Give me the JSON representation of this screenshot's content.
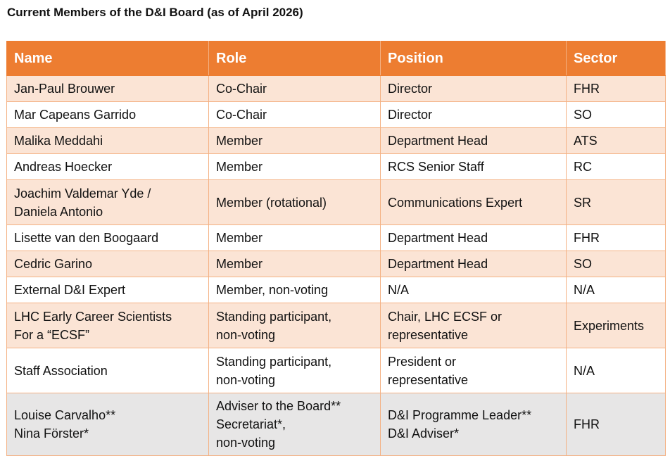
{
  "title": "Current Members of the D&I Board (as of April 2026)",
  "table": {
    "headers": [
      "Name",
      "Role",
      "Position",
      "Sector"
    ],
    "rows": [
      [
        "Jan-Paul Brouwer",
        "Co-Chair",
        "Director",
        "FHR"
      ],
      [
        "Mar Capeans Garrido",
        "Co-Chair",
        "Director",
        "SO"
      ],
      [
        "Malika Meddahi",
        "Member",
        "Department Head",
        "ATS"
      ],
      [
        "Andreas Hoecker",
        "Member",
        "RCS Senior Staff",
        "RC"
      ],
      [
        "Joachim Valdemar Yde /\nDaniela Antonio",
        "Member (rotational)",
        "Communications Expert",
        "SR"
      ],
      [
        "Lisette van den Boogaard",
        "Member",
        "Department Head",
        "FHR"
      ],
      [
        "Cedric Garino",
        "Member",
        "Department Head",
        "SO"
      ],
      [
        "External D&I Expert",
        "Member, non-voting",
        "N/A",
        "N/A"
      ],
      [
        "LHC Early Career Scientists\nFor a “ECSF”",
        "Standing participant,\nnon-voting",
        "Chair, LHC ECSF or\nrepresentative",
        "Experiments"
      ],
      [
        "Staff Association",
        "Standing participant,\nnon-voting",
        "President or\nrepresentative",
        "N/A"
      ],
      [
        "Louise Carvalho**\nNina Förster*",
        "Adviser to the Board**\nSecretariat*,\nnon-voting",
        "D&I Programme Leader**\nD&I Adviser*",
        "FHR"
      ]
    ]
  },
  "colors": {
    "header_bg": "#ed7d31",
    "band_odd": "#fbe4d5",
    "band_even": "#ffffff",
    "last_row": "#e7e6e6",
    "border": "#f4b183"
  }
}
